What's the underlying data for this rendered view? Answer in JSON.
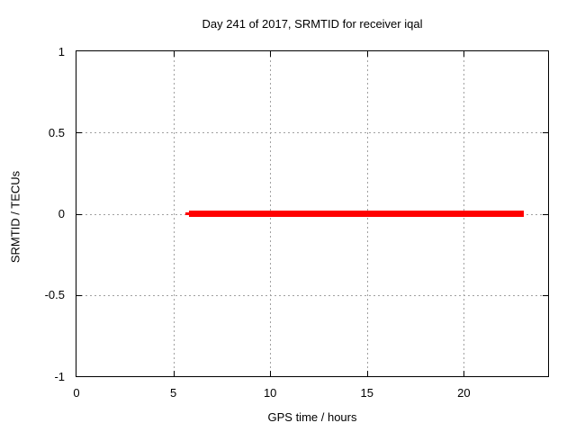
{
  "chart_data": {
    "type": "line",
    "title": "Day 241 of 2017, SRMTID for receiver iqal",
    "xlabel": "GPS time / hours",
    "ylabel": "SRMTID / TECUs",
    "xlim": [
      0,
      24.35
    ],
    "ylim": [
      -1,
      1
    ],
    "xticks": [
      0,
      5,
      10,
      15,
      20
    ],
    "yticks": [
      -1,
      -0.5,
      0,
      0.5,
      1
    ],
    "grid": "dashed",
    "legend": "none",
    "colors": {
      "series": "#ff0000",
      "grid": "#a0a0a0",
      "axis": "#000000",
      "background": "#ffffff"
    },
    "series": [
      {
        "name": "SRMTID",
        "color": "#ff0000",
        "description": "Flat line at 0 TECUs from about 5.6 h to 23.1 h GPS time",
        "segments": [
          {
            "x0": 5.6,
            "x1": 5.82,
            "y": 0,
            "lw": 3
          },
          {
            "x0": 5.82,
            "x1": 23.1,
            "y": 0,
            "lw": 7
          }
        ],
        "points": [
          [
            5.6,
            0
          ],
          [
            23.1,
            0
          ]
        ]
      }
    ]
  }
}
